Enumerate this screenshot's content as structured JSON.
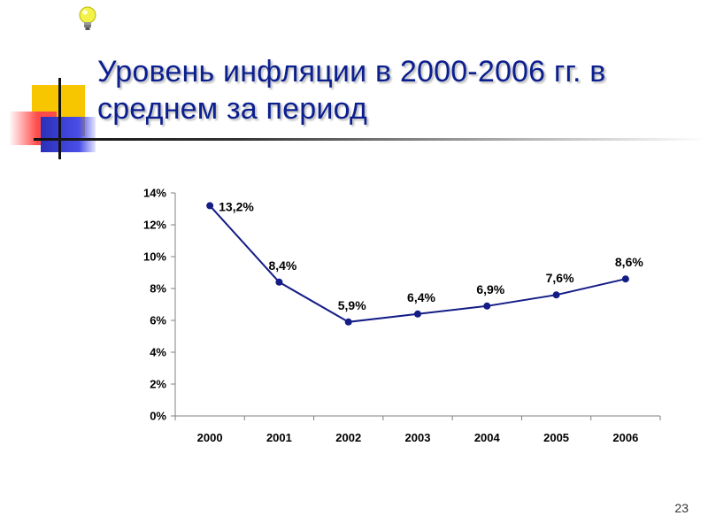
{
  "slide": {
    "title": "Уровень инфляции в 2000-2006 гг. в среднем за период",
    "page_number": "23"
  },
  "icons": {
    "top": "lightbulb-icon"
  },
  "colors": {
    "title": "#0b1f8f",
    "series_line": "#141c86",
    "deco_yellow": "#f7c600",
    "deco_red": "#ff4a4a",
    "deco_blue": "#2b2fb8"
  },
  "chart_data": {
    "type": "line",
    "title": "",
    "xlabel": "",
    "ylabel": "",
    "categories": [
      "2000",
      "2001",
      "2002",
      "2003",
      "2004",
      "2005",
      "2006"
    ],
    "series": [
      {
        "values": [
          13.2,
          8.4,
          5.9,
          6.4,
          6.9,
          7.6,
          8.6
        ]
      }
    ],
    "data_labels": [
      "13,2%",
      "8,4%",
      "5,9%",
      "6,4%",
      "6,9%",
      "7,6%",
      "8,6%"
    ],
    "ylim": [
      0,
      14
    ],
    "y_ticks": [
      0,
      2,
      4,
      6,
      8,
      10,
      12,
      14
    ],
    "y_tick_labels": [
      "0%",
      "2%",
      "4%",
      "6%",
      "8%",
      "10%",
      "12%",
      "14%"
    ],
    "grid": false,
    "legend": "none"
  }
}
